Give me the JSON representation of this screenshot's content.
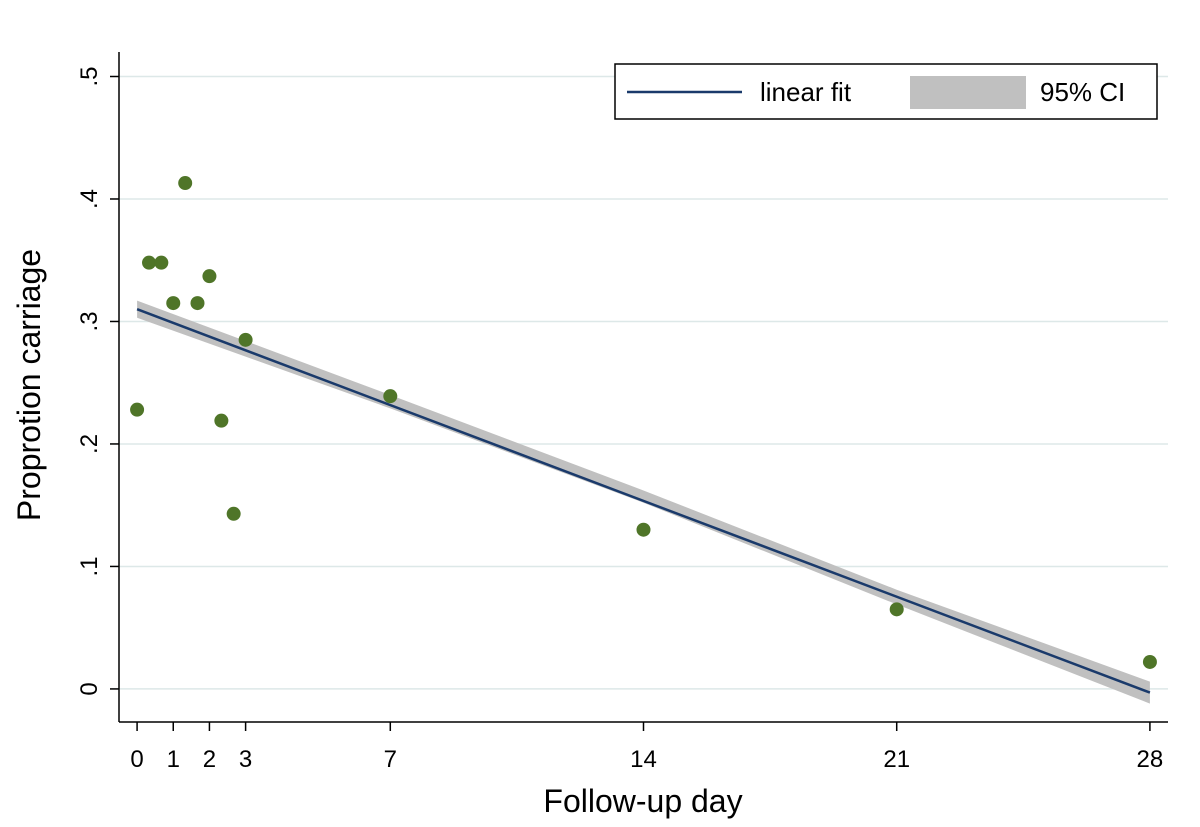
{
  "chart_data": {
    "type": "scatter",
    "title": "",
    "xlabel": "Follow-up day",
    "ylabel": "Proprotion carriage",
    "xlim": [
      -0.5,
      28.5
    ],
    "ylim": [
      -0.027,
      0.52
    ],
    "x_ticks": [
      0,
      1,
      2,
      3,
      7,
      14,
      21,
      28
    ],
    "x_tick_labels": [
      "0",
      "1",
      "2",
      "3",
      "7",
      "14",
      "21",
      "28"
    ],
    "y_ticks": [
      0,
      0.1,
      0.2,
      0.3,
      0.4,
      0.5
    ],
    "y_tick_labels": [
      "0",
      ".1",
      ".2",
      ".3",
      ".4",
      ".5"
    ],
    "grid": true,
    "legend_position": "top-right",
    "legend": [
      {
        "label": "linear fit",
        "kind": "line"
      },
      {
        "label": "95% CI",
        "kind": "band"
      }
    ],
    "series": [
      {
        "kind": "points",
        "x": [
          0,
          0.33,
          0.67,
          1,
          1.33,
          1.67,
          2,
          2.33,
          2.67,
          3,
          7,
          14,
          21,
          28
        ],
        "y": [
          0.228,
          0.348,
          0.348,
          0.315,
          0.413,
          0.315,
          0.337,
          0.219,
          0.143,
          0.285,
          0.239,
          0.13,
          0.065,
          0.022
        ]
      },
      {
        "kind": "fit",
        "x": [
          0,
          28
        ],
        "y": [
          0.31,
          -0.003
        ],
        "ci_x": [
          0,
          7,
          14,
          21,
          28
        ],
        "ci_lower": [
          0.303,
          0.229,
          0.152,
          0.069,
          -0.012
        ],
        "ci_upper": [
          0.317,
          0.24,
          0.162,
          0.081,
          0.006
        ]
      }
    ],
    "colors": {
      "points": "#4f7528",
      "fit_line": "#1a3a6b",
      "ci_band": "#c0c0c0",
      "grid": "#dde8e8",
      "axis": "#000000"
    }
  }
}
